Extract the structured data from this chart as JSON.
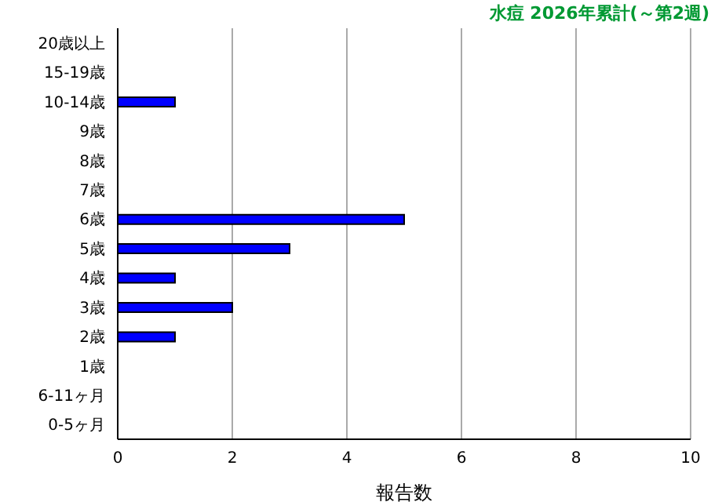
{
  "chart_data": {
    "type": "bar",
    "orientation": "horizontal",
    "title": "水痘 2026年累計(～第2週)",
    "xlabel": "報告数",
    "categories": [
      "20歳以上",
      "15-19歳",
      "10-14歳",
      "9歳",
      "8歳",
      "7歳",
      "6歳",
      "5歳",
      "4歳",
      "3歳",
      "2歳",
      "1歳",
      "6-11ヶ月",
      "0-5ヶ月"
    ],
    "values": [
      0,
      0,
      1,
      0,
      0,
      0,
      5,
      3,
      1,
      2,
      1,
      0,
      0,
      0
    ],
    "color": "#0000ff",
    "xlim": [
      0,
      10
    ],
    "xticks": [
      0,
      2,
      4,
      6,
      8,
      10
    ],
    "grid": "x"
  }
}
